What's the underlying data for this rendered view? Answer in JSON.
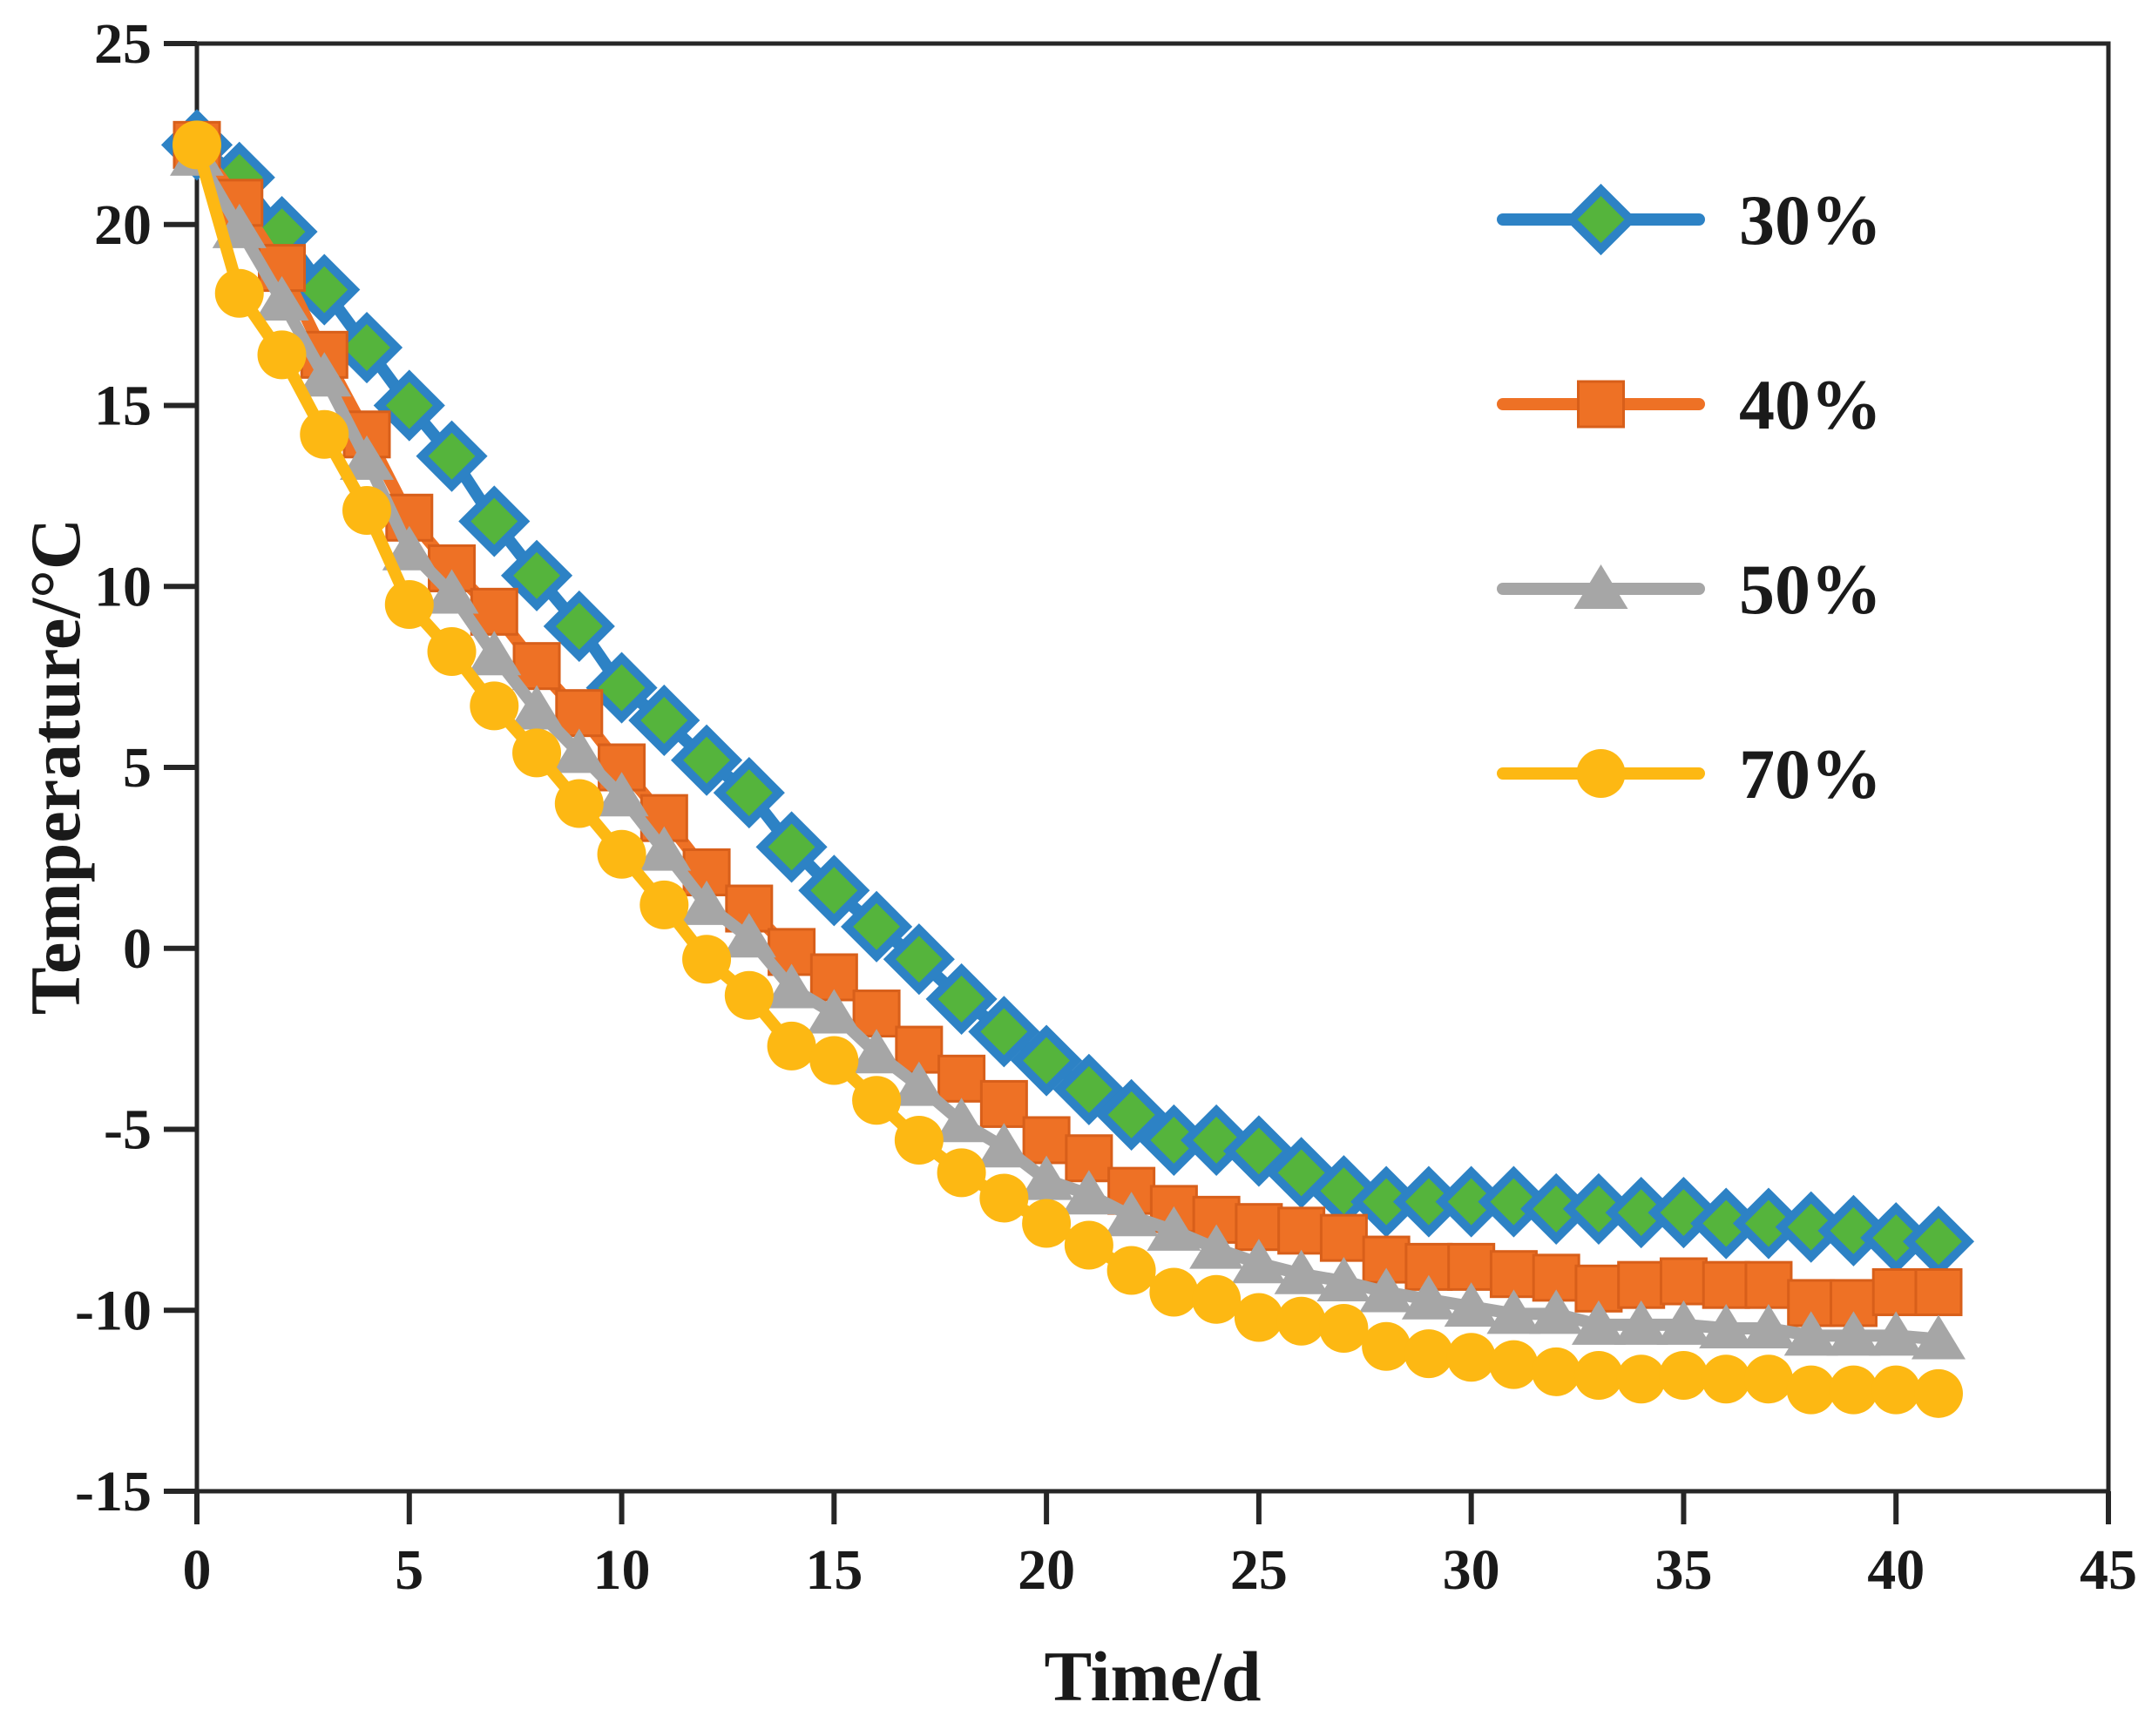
{
  "figure": {
    "background": "#ffffff",
    "axis_color": "#262626",
    "text_color": "#1a1a1a"
  },
  "chart_data": {
    "type": "line",
    "title": "",
    "xlabel": "Time/d",
    "ylabel": "Temperature/°C",
    "xlim": [
      0,
      45
    ],
    "ylim": [
      -15,
      25
    ],
    "x_ticks": [
      0,
      5,
      10,
      15,
      20,
      25,
      30,
      35,
      40,
      45
    ],
    "y_ticks": [
      -15,
      -10,
      -5,
      0,
      5,
      10,
      15,
      20,
      25
    ],
    "grid": false,
    "legend_position": "upper right",
    "x": [
      0,
      1,
      2,
      3,
      4,
      5,
      6,
      7,
      8,
      9,
      10,
      11,
      12,
      13,
      14,
      15,
      16,
      17,
      18,
      19,
      20,
      21,
      22,
      23,
      24,
      25,
      26,
      27,
      28,
      29,
      30,
      31,
      32,
      33,
      34,
      35,
      36,
      37,
      38,
      39,
      40,
      41
    ],
    "series": [
      {
        "name": "30%",
        "line_color": "#2d82c5",
        "marker": "diamond",
        "marker_color": "#55b43c",
        "marker_edge": "#2d82c5",
        "values": [
          22.2,
          21.3,
          19.8,
          18.2,
          16.6,
          15.0,
          13.6,
          11.8,
          10.3,
          8.9,
          7.2,
          6.3,
          5.2,
          4.3,
          2.8,
          1.6,
          0.6,
          -0.3,
          -1.4,
          -2.3,
          -3.1,
          -3.9,
          -4.6,
          -5.3,
          -5.3,
          -5.6,
          -6.2,
          -6.7,
          -7.0,
          -7.0,
          -7.0,
          -7.0,
          -7.2,
          -7.2,
          -7.3,
          -7.3,
          -7.6,
          -7.6,
          -7.7,
          -7.8,
          -8.0,
          -8.1
        ]
      },
      {
        "name": "40%",
        "line_color": "#ee7125",
        "marker": "square",
        "marker_color": "#ee7125",
        "marker_edge": "#d85f1a",
        "values": [
          22.2,
          20.6,
          18.8,
          16.4,
          14.2,
          11.9,
          10.5,
          9.3,
          7.8,
          6.5,
          5.0,
          3.6,
          2.1,
          1.1,
          -0.1,
          -0.8,
          -1.8,
          -2.8,
          -3.6,
          -4.3,
          -5.3,
          -5.8,
          -6.7,
          -7.2,
          -7.5,
          -7.7,
          -7.8,
          -8.0,
          -8.6,
          -8.8,
          -8.8,
          -9.0,
          -9.1,
          -9.4,
          -9.3,
          -9.2,
          -9.3,
          -9.3,
          -9.8,
          -9.8,
          -9.5,
          -9.5
        ]
      },
      {
        "name": "50%",
        "line_color": "#a6a6a6",
        "marker": "triangle",
        "marker_color": "#a6a6a6",
        "marker_edge": "#9b9b9b",
        "values": [
          21.9,
          19.9,
          17.9,
          15.8,
          13.5,
          11.0,
          9.8,
          8.1,
          6.6,
          5.4,
          4.2,
          2.7,
          1.2,
          0.3,
          -1.1,
          -1.8,
          -2.9,
          -3.8,
          -4.8,
          -5.5,
          -6.4,
          -6.8,
          -7.4,
          -7.8,
          -8.3,
          -8.7,
          -9.0,
          -9.2,
          -9.5,
          -9.7,
          -9.9,
          -10.1,
          -10.1,
          -10.4,
          -10.4,
          -10.4,
          -10.5,
          -10.5,
          -10.7,
          -10.7,
          -10.7,
          -10.8
        ]
      },
      {
        "name": "70%",
        "line_color": "#fdb813",
        "marker": "circle",
        "marker_color": "#fdb813",
        "marker_edge": "#f5a800",
        "values": [
          22.2,
          18.1,
          16.4,
          14.2,
          12.1,
          9.5,
          8.2,
          6.7,
          5.4,
          4.0,
          2.6,
          1.2,
          -0.3,
          -1.3,
          -2.7,
          -3.1,
          -4.2,
          -5.3,
          -6.2,
          -6.9,
          -7.6,
          -8.2,
          -8.9,
          -9.5,
          -9.7,
          -10.2,
          -10.3,
          -10.5,
          -11.0,
          -11.2,
          -11.3,
          -11.5,
          -11.7,
          -11.8,
          -11.9,
          -11.8,
          -11.9,
          -11.9,
          -12.2,
          -12.2,
          -12.2,
          -12.3
        ]
      }
    ]
  }
}
